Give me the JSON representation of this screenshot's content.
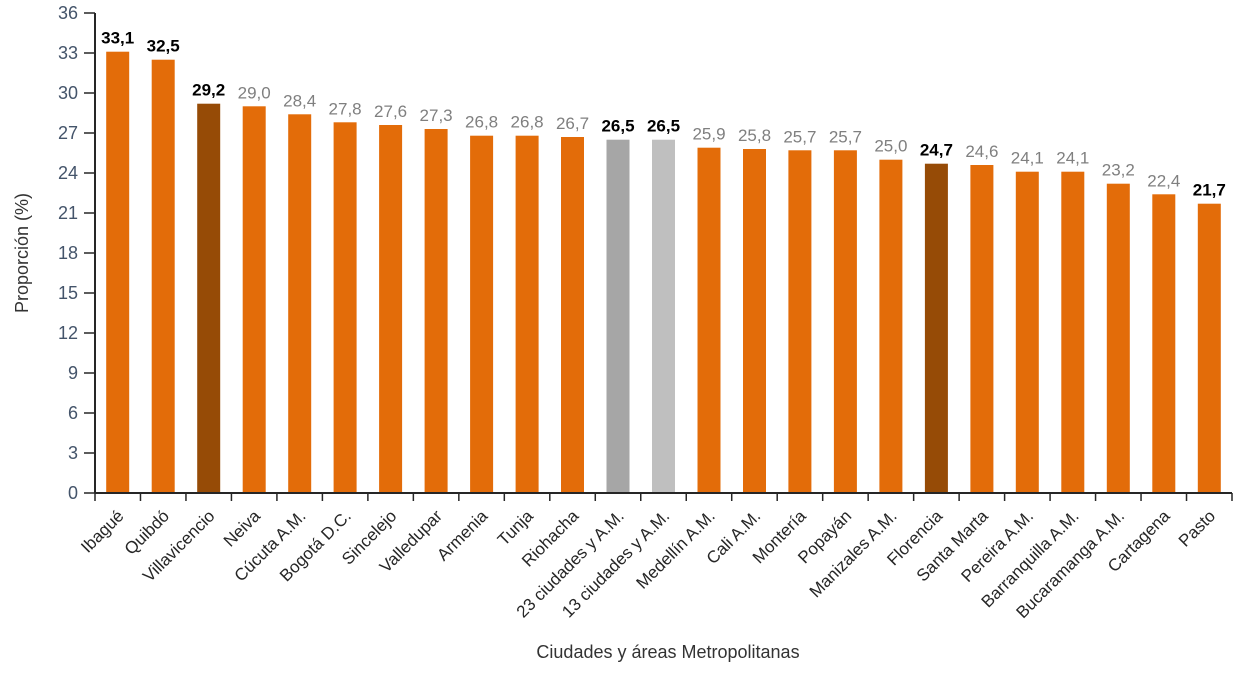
{
  "chart_data": {
    "type": "bar",
    "title": "",
    "xlabel": "Ciudades y áreas Metropolitanas",
    "ylabel": "Proporción (%)",
    "ylim": [
      0,
      36
    ],
    "ytick_step": 3,
    "yticks": [
      0,
      3,
      6,
      9,
      12,
      15,
      18,
      21,
      24,
      27,
      30,
      33,
      36
    ],
    "grid": false,
    "legend_position": "none",
    "decimal_separator": ",",
    "categories": [
      "Ibagué",
      "Quibdó",
      "Villavicencio",
      "Neiva",
      "Cúcuta A.M.",
      "Bogotá D.C.",
      "Sincelejo",
      "Valledupar",
      "Armenia",
      "Tunja",
      "Riohacha",
      "23 ciudades y A.M.",
      "13 ciudades y A.M.",
      "Medellín A.M.",
      "Cali A.M.",
      "Montería",
      "Popayán",
      "Manizales A.M.",
      "Florencia",
      "Santa Marta",
      "Pereira A.M.",
      "Barranquilla A.M.",
      "Bucaramanga A.M.",
      "Cartagena",
      "Pasto"
    ],
    "values": [
      33.1,
      32.5,
      29.2,
      29.0,
      28.4,
      27.8,
      27.6,
      27.3,
      26.8,
      26.8,
      26.7,
      26.5,
      26.5,
      25.9,
      25.8,
      25.7,
      25.7,
      25.0,
      24.7,
      24.6,
      24.1,
      24.1,
      23.2,
      22.4,
      21.7
    ],
    "value_labels": [
      "33,1",
      "32,5",
      "29,2",
      "29,0",
      "28,4",
      "27,8",
      "27,6",
      "27,3",
      "26,8",
      "26,8",
      "26,7",
      "26,5",
      "26,5",
      "25,9",
      "25,8",
      "25,7",
      "25,7",
      "25,0",
      "24,7",
      "24,6",
      "24,1",
      "24,1",
      "23,2",
      "22,4",
      "21,7"
    ],
    "bold_labels": [
      true,
      true,
      true,
      false,
      false,
      false,
      false,
      false,
      false,
      false,
      false,
      true,
      true,
      false,
      false,
      false,
      false,
      false,
      true,
      false,
      false,
      false,
      false,
      false,
      true
    ],
    "bar_color_keys": [
      "orange",
      "orange",
      "dark_brown",
      "orange",
      "orange",
      "orange",
      "orange",
      "orange",
      "orange",
      "orange",
      "orange",
      "gray_medium",
      "gray_light",
      "orange",
      "orange",
      "orange",
      "orange",
      "orange",
      "dark_brown",
      "orange",
      "orange",
      "orange",
      "orange",
      "orange",
      "orange"
    ],
    "colors": {
      "orange": "#E36C09",
      "dark_brown": "#964B06",
      "gray_medium": "#A6A6A6",
      "gray_light": "#BFBFBF",
      "axis_line": "#262626",
      "axis_tick_label": "#44546A",
      "value_label_gray": "#7F7F7F",
      "value_label_bold": "#000000",
      "category_label": "#262626",
      "axis_title": "#333333"
    }
  }
}
